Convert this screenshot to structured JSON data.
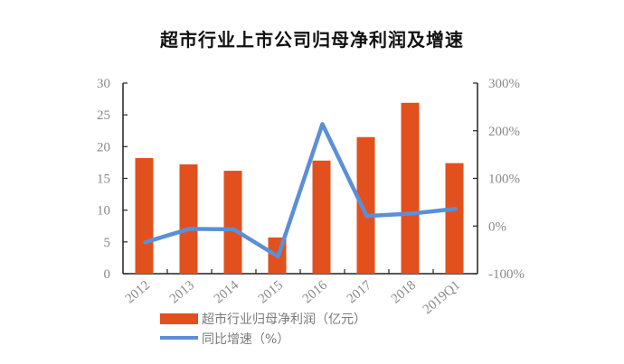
{
  "chart_data": {
    "type": "bar",
    "title": "超市行业上市公司归母净利润及增速",
    "categories": [
      "2012",
      "2013",
      "2014",
      "2015",
      "2016",
      "2017",
      "2018",
      "2019Q1"
    ],
    "series": [
      {
        "name": "超市行业归母净利润（亿元）",
        "type": "bar",
        "axis": "left",
        "color": "#E2501E",
        "values": [
          18.2,
          17.2,
          16.2,
          5.7,
          17.8,
          21.5,
          26.9,
          17.4
        ]
      },
      {
        "name": "同比增速（%）",
        "type": "line",
        "axis": "right",
        "color": "#5B8FD6",
        "values": [
          -34,
          -6,
          -7,
          -64,
          214,
          21,
          26,
          36
        ]
      }
    ],
    "left_axis": {
      "ylim": [
        0,
        30
      ],
      "ticks": [
        "0",
        "5",
        "10",
        "15",
        "20",
        "25",
        "30"
      ]
    },
    "right_axis": {
      "ylim": [
        -100,
        300
      ],
      "ticks": [
        "-100%",
        "0%",
        "100%",
        "200%",
        "300%"
      ]
    },
    "grid": false,
    "legend_position": "bottom"
  }
}
